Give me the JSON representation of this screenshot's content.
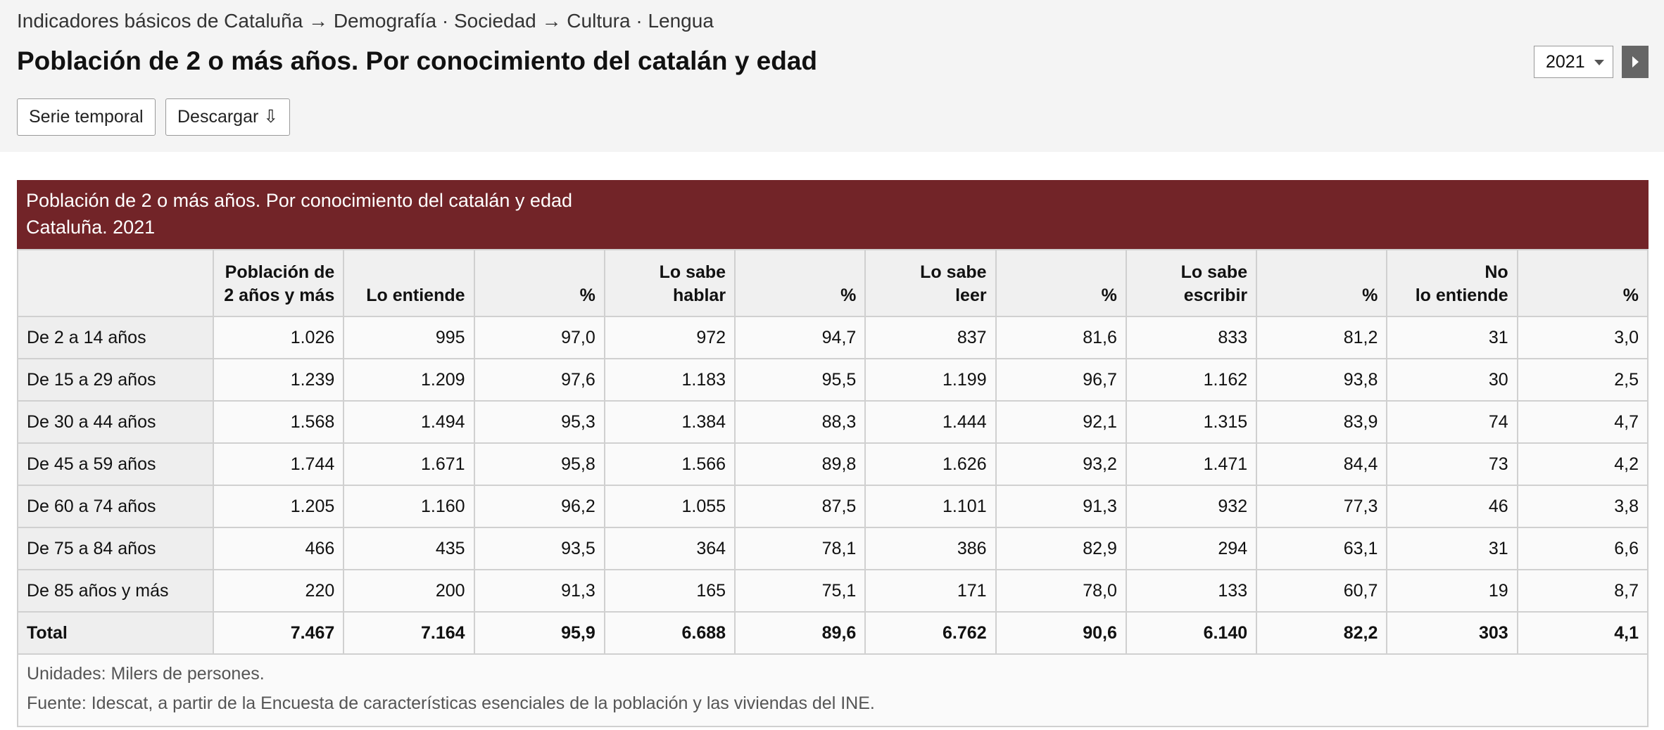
{
  "header": {
    "breadcrumb": "Indicadores básicos de Cataluña → Demografía · Sociedad → Cultura · Lengua",
    "title": "Población de 2 o más años. Por conocimiento del catalán y edad",
    "buttons": [
      "Serie temporal",
      "Descargar ⇩"
    ],
    "year": "2021"
  },
  "table": {
    "caption": [
      "Población de 2 o más años. Por conocimiento del catalán y edad",
      "Cataluña. 2021"
    ],
    "columns": [
      "Población de\n2 años y más",
      "Lo entiende",
      "%",
      "Lo sabe\nhablar",
      "%",
      "Lo sabe\nleer",
      "%",
      "Lo sabe\nescribir",
      "%",
      "No\nlo entiende",
      "%"
    ],
    "rows": [
      [
        "De 2 a 14 años",
        "1.026",
        "995",
        "97,0",
        "972",
        "94,7",
        "837",
        "81,6",
        "833",
        "81,2",
        "31",
        "3,0"
      ],
      [
        "De 15 a 29 años",
        "1.239",
        "1.209",
        "97,6",
        "1.183",
        "95,5",
        "1.199",
        "96,7",
        "1.162",
        "93,8",
        "30",
        "2,5"
      ],
      [
        "De 30 a 44 años",
        "1.568",
        "1.494",
        "95,3",
        "1.384",
        "88,3",
        "1.444",
        "92,1",
        "1.315",
        "83,9",
        "74",
        "4,7"
      ],
      [
        "De 45 a 59 años",
        "1.744",
        "1.671",
        "95,8",
        "1.566",
        "89,8",
        "1.626",
        "93,2",
        "1.471",
        "84,4",
        "73",
        "4,2"
      ],
      [
        "De 60 a 74 años",
        "1.205",
        "1.160",
        "96,2",
        "1.055",
        "87,5",
        "1.101",
        "91,3",
        "932",
        "77,3",
        "46",
        "3,8"
      ],
      [
        "De 75 a 84 años",
        "466",
        "435",
        "93,5",
        "364",
        "78,1",
        "386",
        "82,9",
        "294",
        "63,1",
        "31",
        "6,6"
      ],
      [
        "De 85 años y más",
        "220",
        "200",
        "91,3",
        "165",
        "75,1",
        "171",
        "78,0",
        "133",
        "60,7",
        "19",
        "8,7"
      ],
      [
        "Total",
        "7.467",
        "7.164",
        "95,9",
        "6.688",
        "89,6",
        "6.762",
        "90,6",
        "6.140",
        "82,2",
        "303",
        "4,1"
      ]
    ],
    "notes": [
      "Unidades: Milers de persones.",
      "Fuente: Idescat, a partir de la Encuesta de características esenciales de la población y las viviendas del INE."
    ]
  }
}
